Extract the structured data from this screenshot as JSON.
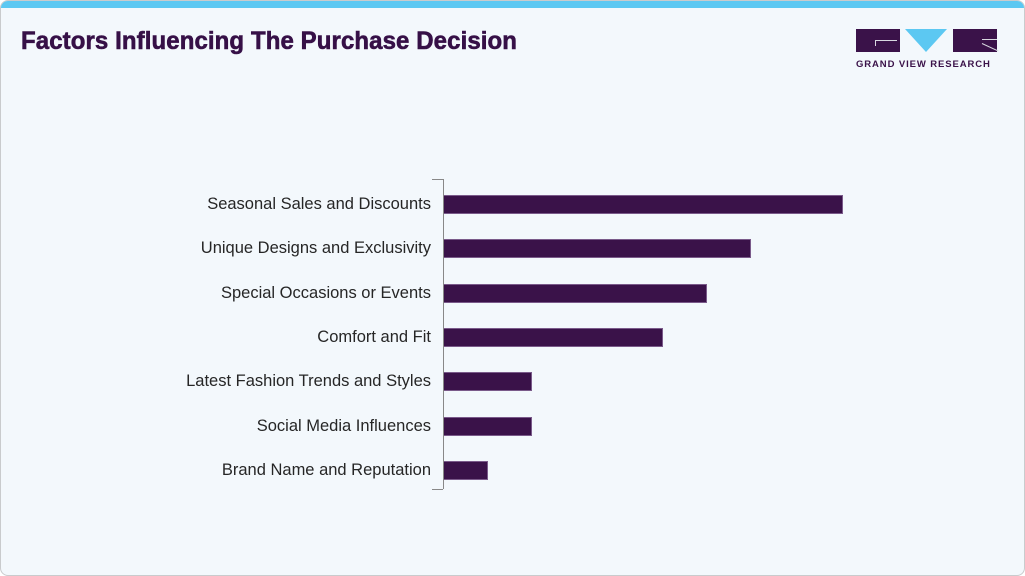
{
  "header": {
    "title": "Factors Influencing The Purchase Decision",
    "accent_color": "#5cc8f2"
  },
  "logo": {
    "wordmark": "GRAND VIEW RESEARCH",
    "icon": "gvr-logo-icon",
    "colors": {
      "primary": "#3a1249",
      "accent": "#5cc8f2"
    }
  },
  "chart_data": {
    "type": "bar",
    "orientation": "horizontal",
    "title": "Factors Influencing The Purchase Decision",
    "xlabel": "",
    "ylabel": "",
    "categories": [
      "Seasonal Sales and Discounts",
      "Unique Designs and Exclusivity",
      "Special Occasions or Events",
      "Comfort and Fit",
      "Latest Fashion Trends and Styles",
      "Social Media Influences",
      "Brand Name and Reputation"
    ],
    "values": [
      100,
      77,
      66,
      55,
      22,
      22,
      11
    ],
    "value_note": "relative scale (no axis shown); longest bar = 100",
    "bar_color": "#3a1249",
    "grid": false,
    "legend": null,
    "xlim": [
      0,
      100
    ]
  }
}
